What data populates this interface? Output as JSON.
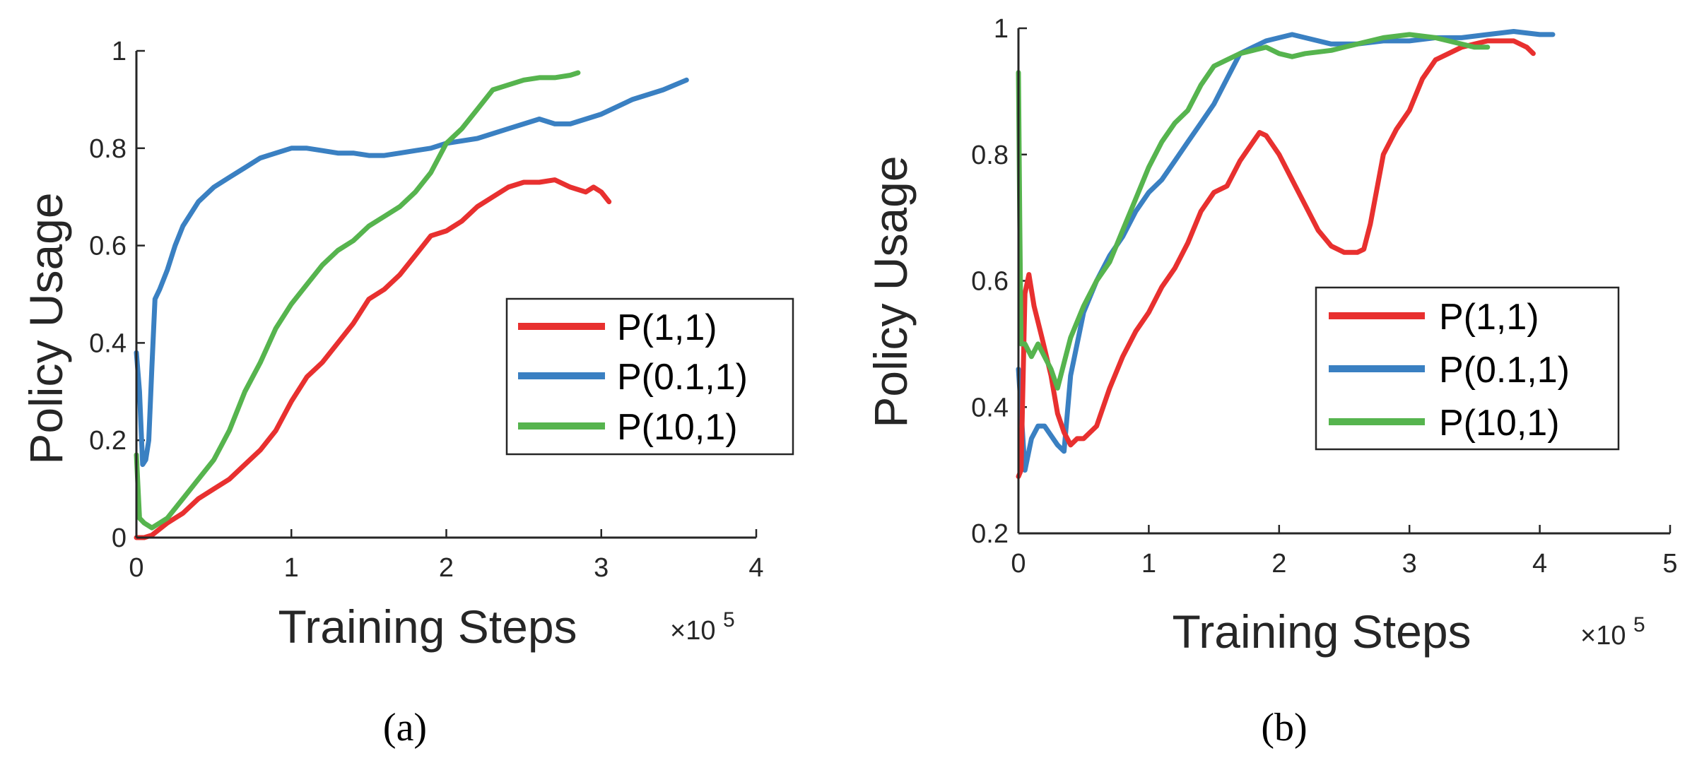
{
  "chart_data": [
    {
      "type": "line",
      "panel": "a",
      "caption": "(a)",
      "xlabel": "Training Steps",
      "ylabel": "Policy Usage",
      "x_multiplier": "×10",
      "x_exponent": "5",
      "xlim": [
        0,
        4
      ],
      "ylim": [
        0,
        1
      ],
      "xticks": [
        "0",
        "1",
        "2",
        "3",
        "4"
      ],
      "yticks": [
        "0",
        "0.2",
        "0.4",
        "0.6",
        "0.8",
        "1"
      ],
      "legend_position": "center-right",
      "series": [
        {
          "name": "P(1,1)",
          "color": "#e8302f",
          "x": [
            0,
            0.05,
            0.1,
            0.2,
            0.3,
            0.4,
            0.5,
            0.6,
            0.7,
            0.8,
            0.9,
            1.0,
            1.1,
            1.2,
            1.3,
            1.4,
            1.5,
            1.6,
            1.7,
            1.8,
            1.9,
            2.0,
            2.1,
            2.2,
            2.3,
            2.4,
            2.5,
            2.6,
            2.7,
            2.8,
            2.9,
            2.95,
            3.0,
            3.05
          ],
          "y": [
            0.0,
            0.0,
            0.005,
            0.03,
            0.05,
            0.08,
            0.1,
            0.12,
            0.15,
            0.18,
            0.22,
            0.28,
            0.33,
            0.36,
            0.4,
            0.44,
            0.49,
            0.51,
            0.54,
            0.58,
            0.62,
            0.63,
            0.65,
            0.68,
            0.7,
            0.72,
            0.73,
            0.73,
            0.735,
            0.72,
            0.71,
            0.72,
            0.71,
            0.69
          ]
        },
        {
          "name": "P(0.1,1)",
          "color": "#3a80c2",
          "x": [
            0,
            0.02,
            0.04,
            0.06,
            0.08,
            0.1,
            0.12,
            0.15,
            0.2,
            0.25,
            0.3,
            0.4,
            0.5,
            0.6,
            0.7,
            0.8,
            0.9,
            1.0,
            1.1,
            1.2,
            1.3,
            1.4,
            1.5,
            1.6,
            1.7,
            1.8,
            1.9,
            2.0,
            2.2,
            2.4,
            2.6,
            2.7,
            2.8,
            3.0,
            3.2,
            3.4,
            3.55
          ],
          "y": [
            0.38,
            0.3,
            0.15,
            0.16,
            0.2,
            0.35,
            0.49,
            0.51,
            0.55,
            0.6,
            0.64,
            0.69,
            0.72,
            0.74,
            0.76,
            0.78,
            0.79,
            0.8,
            0.8,
            0.795,
            0.79,
            0.79,
            0.785,
            0.785,
            0.79,
            0.795,
            0.8,
            0.81,
            0.82,
            0.84,
            0.86,
            0.85,
            0.85,
            0.87,
            0.9,
            0.92,
            0.94
          ]
        },
        {
          "name": "P(10,1)",
          "color": "#56b44e",
          "x": [
            0,
            0.02,
            0.05,
            0.1,
            0.15,
            0.2,
            0.25,
            0.3,
            0.4,
            0.5,
            0.6,
            0.7,
            0.8,
            0.9,
            1.0,
            1.1,
            1.2,
            1.3,
            1.4,
            1.5,
            1.6,
            1.7,
            1.8,
            1.9,
            2.0,
            2.1,
            2.2,
            2.3,
            2.4,
            2.5,
            2.6,
            2.7,
            2.8,
            2.85
          ],
          "y": [
            0.17,
            0.04,
            0.03,
            0.02,
            0.03,
            0.04,
            0.06,
            0.08,
            0.12,
            0.16,
            0.22,
            0.3,
            0.36,
            0.43,
            0.48,
            0.52,
            0.56,
            0.59,
            0.61,
            0.64,
            0.66,
            0.68,
            0.71,
            0.75,
            0.81,
            0.84,
            0.88,
            0.92,
            0.93,
            0.94,
            0.945,
            0.945,
            0.95,
            0.955
          ]
        }
      ]
    },
    {
      "type": "line",
      "panel": "b",
      "caption": "(b)",
      "xlabel": "Training Steps",
      "ylabel": "Policy Usage",
      "x_multiplier": "×10",
      "x_exponent": "5",
      "xlim": [
        0,
        5
      ],
      "ylim": [
        0.2,
        1
      ],
      "xticks": [
        "0",
        "1",
        "2",
        "3",
        "4",
        "5"
      ],
      "yticks": [
        "0.2",
        "0.4",
        "0.6",
        "0.8",
        "1"
      ],
      "legend_position": "center-right",
      "series": [
        {
          "name": "P(1,1)",
          "color": "#e8302f",
          "x": [
            0,
            0.02,
            0.05,
            0.08,
            0.12,
            0.18,
            0.25,
            0.3,
            0.35,
            0.4,
            0.45,
            0.5,
            0.6,
            0.7,
            0.8,
            0.9,
            1.0,
            1.1,
            1.2,
            1.3,
            1.4,
            1.5,
            1.6,
            1.7,
            1.8,
            1.85,
            1.9,
            2.0,
            2.1,
            2.2,
            2.3,
            2.4,
            2.5,
            2.6,
            2.65,
            2.7,
            2.8,
            2.9,
            3.0,
            3.1,
            3.2,
            3.3,
            3.4,
            3.5,
            3.6,
            3.7,
            3.8,
            3.9,
            3.95
          ],
          "y": [
            0.29,
            0.3,
            0.58,
            0.61,
            0.56,
            0.51,
            0.45,
            0.39,
            0.36,
            0.34,
            0.35,
            0.35,
            0.37,
            0.43,
            0.48,
            0.52,
            0.55,
            0.59,
            0.62,
            0.66,
            0.71,
            0.74,
            0.75,
            0.79,
            0.82,
            0.835,
            0.83,
            0.8,
            0.76,
            0.72,
            0.68,
            0.655,
            0.645,
            0.645,
            0.65,
            0.69,
            0.8,
            0.84,
            0.87,
            0.92,
            0.95,
            0.96,
            0.97,
            0.975,
            0.98,
            0.98,
            0.98,
            0.97,
            0.96
          ]
        },
        {
          "name": "P(0.1,1)",
          "color": "#3a80c2",
          "x": [
            0,
            0.05,
            0.1,
            0.15,
            0.2,
            0.3,
            0.35,
            0.4,
            0.5,
            0.6,
            0.7,
            0.8,
            0.9,
            1.0,
            1.1,
            1.2,
            1.3,
            1.4,
            1.5,
            1.6,
            1.7,
            1.8,
            1.9,
            2.0,
            2.1,
            2.2,
            2.4,
            2.6,
            2.8,
            3.0,
            3.2,
            3.4,
            3.6,
            3.8,
            4.0,
            4.1
          ],
          "y": [
            0.46,
            0.3,
            0.35,
            0.37,
            0.37,
            0.34,
            0.33,
            0.45,
            0.55,
            0.6,
            0.64,
            0.67,
            0.71,
            0.74,
            0.76,
            0.79,
            0.82,
            0.85,
            0.88,
            0.92,
            0.96,
            0.97,
            0.98,
            0.985,
            0.99,
            0.985,
            0.975,
            0.975,
            0.98,
            0.98,
            0.985,
            0.985,
            0.99,
            0.995,
            0.99,
            0.99
          ]
        },
        {
          "name": "P(10,1)",
          "color": "#56b44e",
          "x": [
            0,
            0.01,
            0.02,
            0.05,
            0.1,
            0.15,
            0.2,
            0.25,
            0.3,
            0.35,
            0.4,
            0.5,
            0.6,
            0.7,
            0.8,
            0.9,
            1.0,
            1.1,
            1.2,
            1.3,
            1.4,
            1.5,
            1.6,
            1.7,
            1.8,
            1.9,
            2.0,
            2.1,
            2.2,
            2.4,
            2.6,
            2.8,
            3.0,
            3.2,
            3.3,
            3.4,
            3.5,
            3.6
          ],
          "y": [
            0.93,
            0.7,
            0.5,
            0.5,
            0.48,
            0.5,
            0.48,
            0.46,
            0.43,
            0.47,
            0.51,
            0.56,
            0.6,
            0.63,
            0.68,
            0.73,
            0.78,
            0.82,
            0.85,
            0.87,
            0.91,
            0.94,
            0.95,
            0.96,
            0.965,
            0.97,
            0.96,
            0.955,
            0.96,
            0.965,
            0.975,
            0.985,
            0.99,
            0.985,
            0.98,
            0.975,
            0.97,
            0.97
          ]
        }
      ]
    }
  ]
}
